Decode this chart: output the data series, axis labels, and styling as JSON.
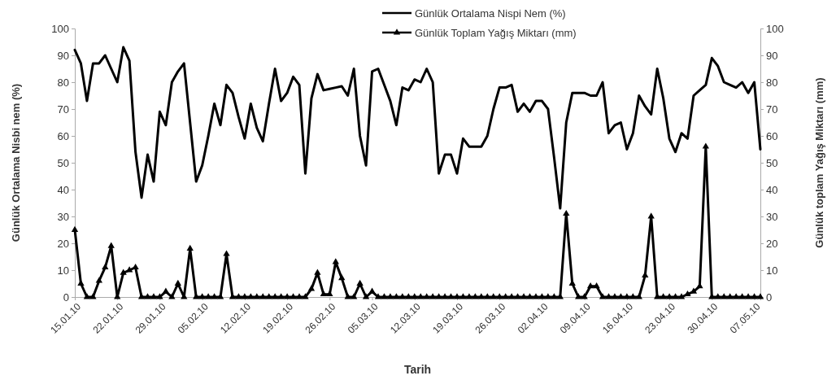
{
  "chart_data": {
    "type": "line",
    "xlabel": "Tarih",
    "ylabel": "Günlük Ortalama Nisbi nem (%)",
    "y2label": "Günlük toplam Yağış Miktarı (mm)",
    "x": [
      "--01-15",
      "--01-16",
      "--01-17",
      "--01-18",
      "--01-19",
      "--01-20",
      "--01-21",
      "--01-22",
      "--01-23",
      "--01-24",
      "--01-25",
      "--01-26",
      "--01-27",
      "--01-28",
      "--01-29",
      "--01-30",
      "--01-31",
      "--02-01",
      "--02-02",
      "--02-03",
      "--02-04",
      "--02-05",
      "--02-06",
      "--02-07",
      "--02-08",
      "--02-09",
      "--02-10",
      "--02-11",
      "--02-12",
      "--02-13",
      "--02-14",
      "--02-15",
      "--02-16",
      "--02-17",
      "--02-18",
      "--02-19",
      "--02-20",
      "--02-21",
      "--02-22",
      "--02-23",
      "--02-24",
      "--02-25",
      "--02-26",
      "--02-27",
      "--02-28",
      "--03-01",
      "--03-02",
      "--03-03",
      "--03-04",
      "--03-05",
      "--03-06",
      "--03-07",
      "--03-08",
      "--03-09",
      "--03-10",
      "--03-11",
      "--03-12",
      "--03-13",
      "--03-14",
      "--03-15",
      "--03-16",
      "--03-17",
      "--03-18",
      "--03-19",
      "--03-20",
      "--03-21",
      "--03-22",
      "--03-23",
      "--03-24",
      "--03-25",
      "--03-26",
      "--03-27",
      "--03-28",
      "--03-29",
      "--03-30",
      "--03-31",
      "--04-01",
      "--04-02",
      "--04-03",
      "--04-04",
      "--04-05",
      "--04-06",
      "--04-07",
      "--04-08",
      "--04-09",
      "--04-10",
      "--04-11",
      "--04-12",
      "--04-13",
      "--04-14",
      "--04-15",
      "--04-16",
      "--04-17",
      "--04-18",
      "--04-19",
      "--04-20",
      "--04-21",
      "--04-22",
      "--04-23",
      "--04-24",
      "--04-25",
      "--04-26",
      "--04-27",
      "--04-28",
      "--04-29",
      "--04-30",
      "--05-01",
      "--05-02",
      "--05-03",
      "--05-04",
      "--05-05",
      "--05-06",
      "--05-07",
      "--05-08"
    ],
    "series": [
      {
        "name": "Günlük Ortalama Nispi Nem (%)",
        "color": "#000000",
        "marker": "none",
        "values": [
          92,
          87,
          73,
          87,
          87,
          90,
          85,
          80,
          93,
          88,
          54,
          37,
          53,
          43,
          69,
          64,
          80,
          84,
          87,
          65,
          43,
          49,
          60,
          72,
          64,
          79,
          76,
          67,
          59,
          72,
          63,
          58,
          72,
          85,
          73,
          76,
          82,
          79,
          46,
          74,
          83,
          77,
          77.5,
          78,
          78.5,
          75,
          85,
          60,
          49,
          84,
          85,
          79,
          73,
          64,
          78,
          77,
          81,
          80,
          85,
          80,
          46,
          53,
          53,
          46,
          59,
          56,
          56,
          56,
          60,
          70,
          78,
          78,
          79,
          69,
          72,
          69,
          73,
          73,
          70,
          52,
          33,
          65,
          76,
          76,
          76,
          75,
          75,
          80,
          61,
          64,
          65,
          55,
          61,
          75,
          71,
          68,
          85,
          74,
          59,
          54,
          61,
          59,
          75,
          77,
          79,
          89,
          86,
          80,
          79,
          78,
          80,
          76,
          80,
          55
        ]
      },
      {
        "name": "Günlük Toplam Yağış Miktarı (mm)",
        "color": "#000000",
        "marker": "triangle",
        "axis": "y2",
        "values": [
          25,
          5,
          0,
          0,
          6,
          11,
          19,
          0,
          9,
          10,
          11,
          0,
          0,
          0,
          0,
          2,
          0,
          5,
          0,
          18,
          0,
          0,
          0,
          0,
          0,
          16,
          0,
          0,
          0,
          0,
          0,
          0,
          0,
          0,
          0,
          0,
          0,
          0,
          0,
          3,
          9,
          1,
          1,
          13,
          7,
          0,
          0,
          5,
          0,
          2,
          0,
          0,
          0,
          0,
          0,
          0,
          0,
          0,
          0,
          0,
          0,
          0,
          0,
          0,
          0,
          0,
          0,
          0,
          0,
          0,
          0,
          0,
          0,
          0,
          0,
          0,
          0,
          0,
          0,
          0,
          0,
          31,
          5,
          0,
          0,
          4,
          4,
          0,
          0,
          0,
          0,
          0,
          0,
          0,
          8,
          30,
          0,
          0,
          0,
          0,
          0,
          1,
          2,
          4,
          56,
          0,
          0,
          0,
          0,
          0,
          0,
          0,
          0,
          0
        ]
      }
    ],
    "xlim": [
      "--01-15",
      "--05-08"
    ],
    "xticks": [
      {
        "value": "--01-15",
        "label": "15.01.10"
      },
      {
        "value": "--01-22",
        "label": "22.01.10"
      },
      {
        "value": "--01-29",
        "label": "29.01.10"
      },
      {
        "value": "--02-05",
        "label": "05.02.10"
      },
      {
        "value": "--02-12",
        "label": "12.02.10"
      },
      {
        "value": "--02-19",
        "label": "19.02.10"
      },
      {
        "value": "--02-26",
        "label": "26.02.10"
      },
      {
        "value": "--03-05",
        "label": "05.03.10"
      },
      {
        "value": "--03-12",
        "label": "12.03.10"
      },
      {
        "value": "--03-19",
        "label": "19.03.10"
      },
      {
        "value": "--03-26",
        "label": "26.03.10"
      },
      {
        "value": "--04-02",
        "label": "02.04.10"
      },
      {
        "value": "--04-09",
        "label": "09.04.10"
      },
      {
        "value": "--04-16",
        "label": "16.04.10"
      },
      {
        "value": "--04-23",
        "label": "23.04.10"
      },
      {
        "value": "--04-30",
        "label": "30.04.10"
      },
      {
        "value": "--05-07",
        "label": "07.05.10"
      }
    ],
    "ylim": [
      0,
      100
    ],
    "yticks": [
      0,
      10,
      20,
      30,
      40,
      50,
      60,
      70,
      80,
      90,
      100
    ],
    "y2lim": [
      0,
      100
    ],
    "y2ticks": [
      0,
      10,
      20,
      30,
      40,
      50,
      60,
      70,
      80,
      90,
      100
    ],
    "grid": false,
    "legend": "top",
    "line_style": "solid"
  }
}
